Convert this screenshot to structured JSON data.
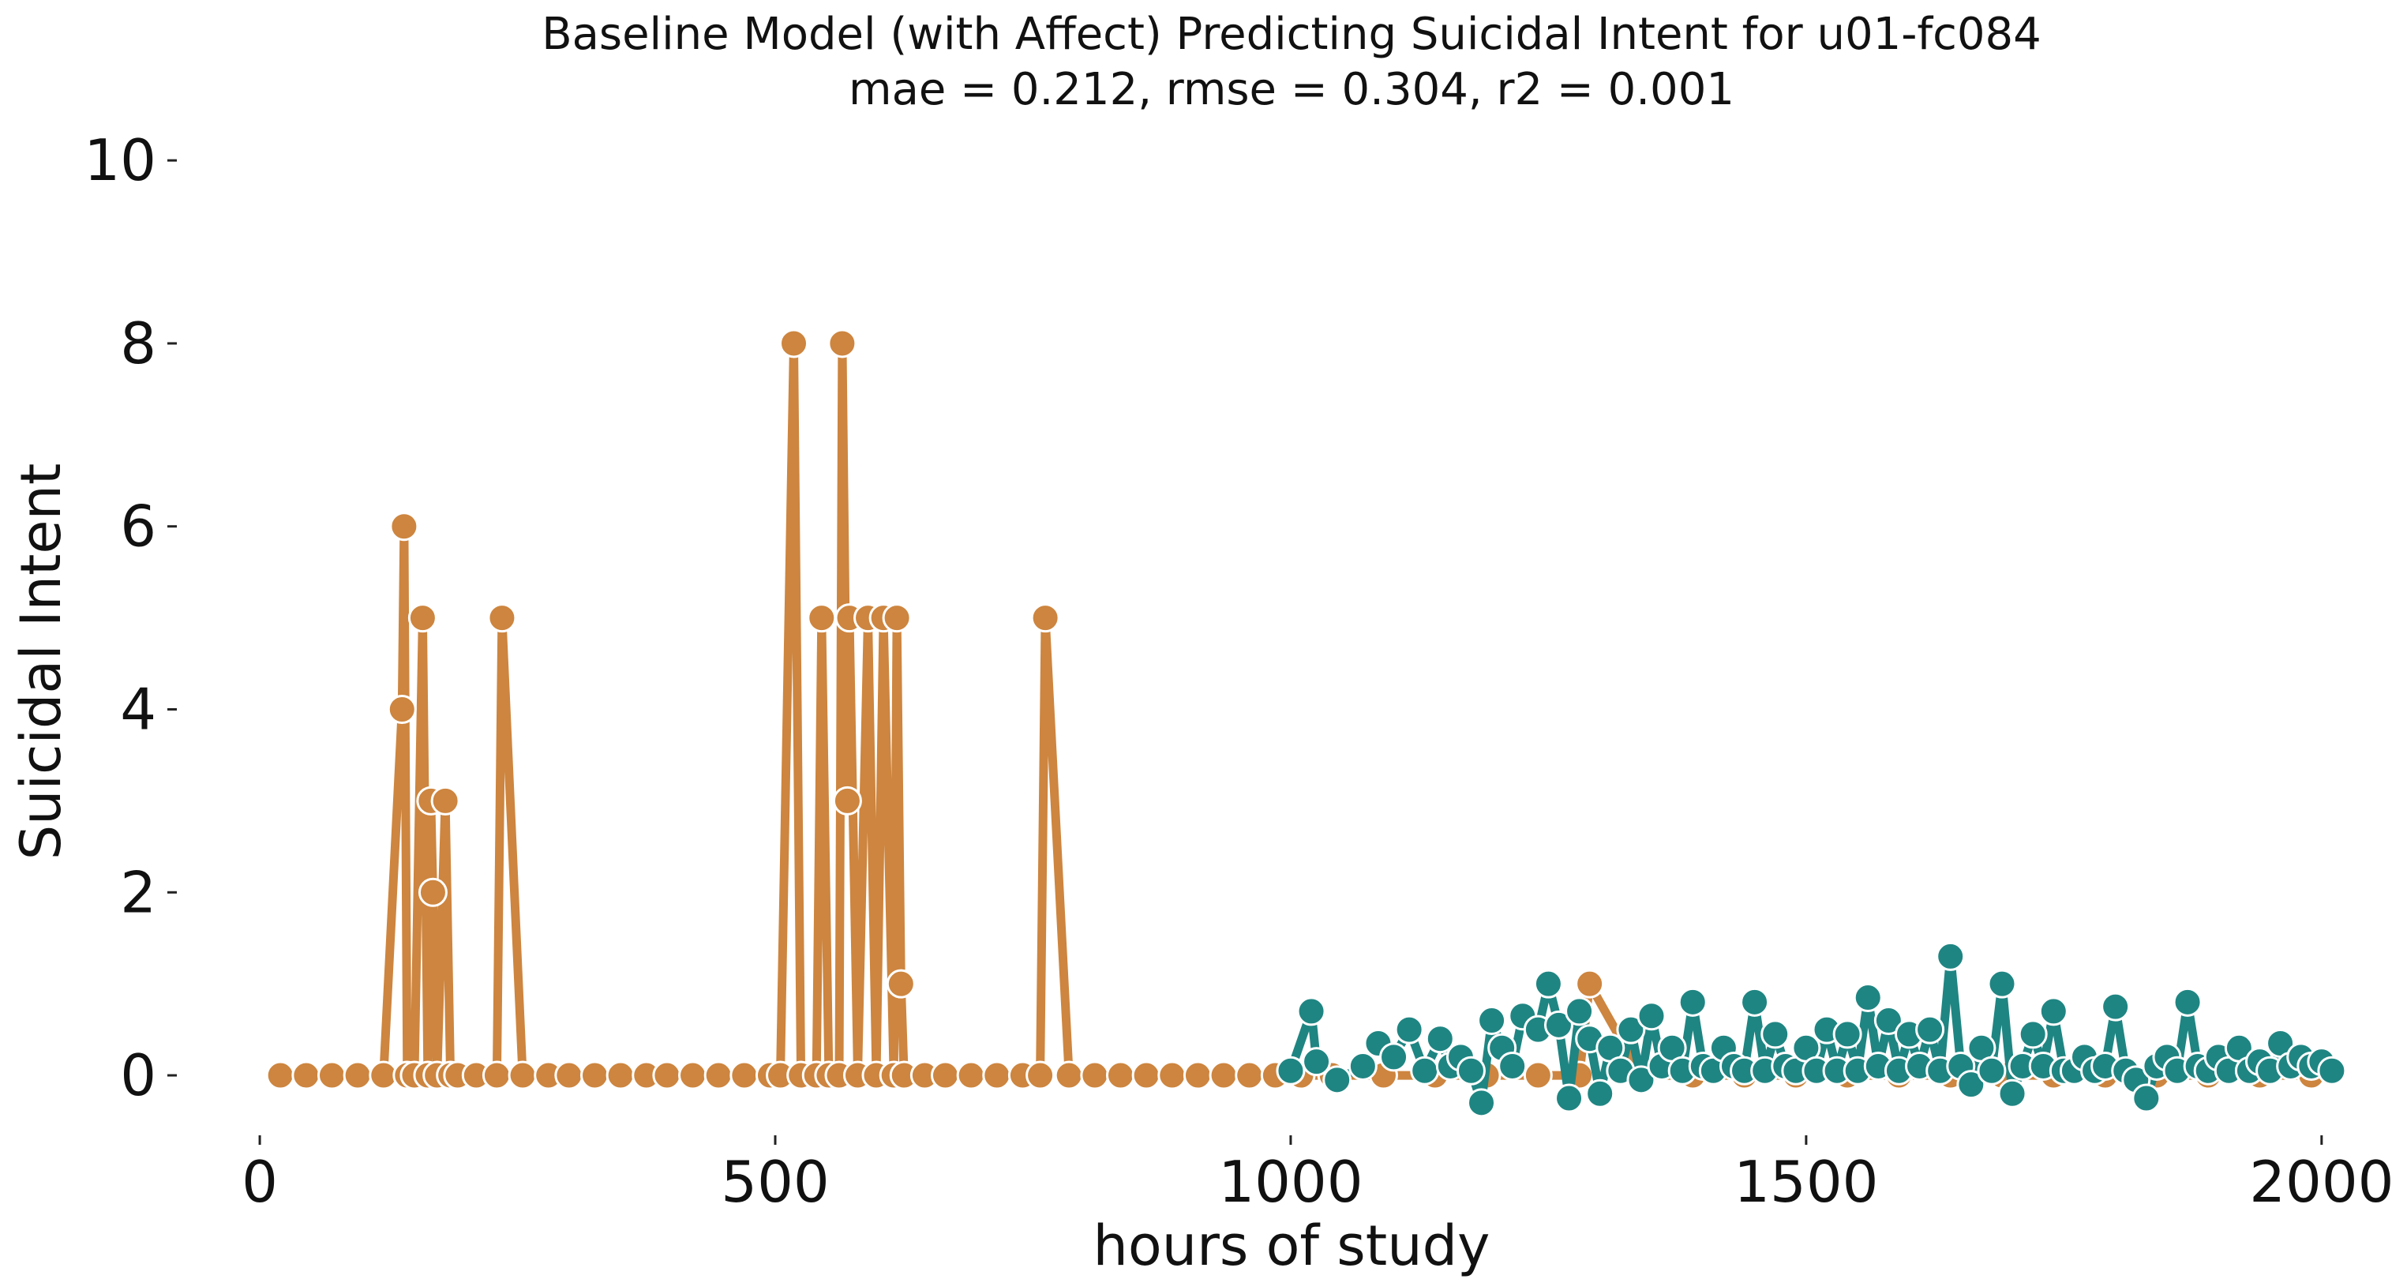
{
  "chart_data": {
    "type": "line",
    "title": "Baseline Model (with Affect) Predicting Suicidal Intent for u01-fc084",
    "subtitle": "mae = 0.212, rmse = 0.304, r2 = 0.001",
    "xlabel": "hours of study",
    "ylabel": "Suicidal Intent",
    "xlim": [
      -10,
      2030
    ],
    "ylim": [
      -0.5,
      10.2
    ],
    "xticks": [
      0,
      500,
      1000,
      1500,
      2000
    ],
    "yticks": [
      0,
      2,
      4,
      6,
      8,
      10
    ],
    "grid": false,
    "legend": "none",
    "colors": {
      "observed": "#cd853f",
      "predicted": "#1f8582"
    },
    "series": [
      {
        "role": "observed",
        "x": [
          20,
          45,
          70,
          95,
          120,
          138,
          140,
          143,
          150,
          158,
          163,
          166,
          168,
          172,
          180,
          185,
          192,
          210,
          230,
          235,
          255,
          280,
          300,
          325,
          350,
          375,
          395,
          420,
          445,
          470,
          495,
          505,
          518,
          525,
          540,
          545,
          552,
          562,
          565,
          570,
          572,
          580,
          590,
          598,
          605,
          615,
          618,
          622,
          625,
          645,
          665,
          690,
          715,
          740,
          757,
          762,
          785,
          810,
          835,
          860,
          885,
          910,
          935,
          960,
          985,
          1010,
          1040,
          1090,
          1140,
          1190,
          1240,
          1280,
          1290,
          1340,
          1390,
          1440,
          1490,
          1540,
          1590,
          1640,
          1690,
          1740,
          1790,
          1840,
          1890,
          1940,
          1990
        ],
        "y": [
          0,
          0,
          0,
          0,
          0,
          4,
          6,
          0,
          0,
          5,
          0,
          3,
          2,
          0,
          3,
          0,
          0,
          0,
          0,
          5,
          0,
          0,
          0,
          0,
          0,
          0,
          0,
          0,
          0,
          0,
          0,
          0,
          8,
          0,
          0,
          5,
          0,
          0,
          8,
          3,
          5,
          0,
          5,
          0,
          5,
          0,
          5,
          1,
          0,
          0,
          0,
          0,
          0,
          0,
          0,
          5,
          0,
          0,
          0,
          0,
          0,
          0,
          0,
          0,
          0,
          0,
          0,
          0,
          0,
          0,
          0,
          0,
          1,
          0,
          0,
          0,
          0,
          0,
          0,
          0,
          0,
          0,
          0,
          0,
          0,
          0,
          0
        ]
      },
      {
        "role": "predicted",
        "x": [
          1000,
          1020,
          1025,
          1045,
          1070,
          1085,
          1100,
          1115,
          1130,
          1145,
          1155,
          1165,
          1175,
          1185,
          1195,
          1205,
          1215,
          1225,
          1240,
          1250,
          1260,
          1270,
          1280,
          1290,
          1300,
          1310,
          1320,
          1330,
          1340,
          1350,
          1360,
          1370,
          1380,
          1390,
          1400,
          1410,
          1420,
          1430,
          1440,
          1450,
          1460,
          1470,
          1480,
          1490,
          1500,
          1510,
          1520,
          1530,
          1540,
          1550,
          1560,
          1570,
          1580,
          1590,
          1600,
          1610,
          1620,
          1630,
          1640,
          1650,
          1660,
          1670,
          1680,
          1690,
          1700,
          1710,
          1720,
          1730,
          1740,
          1750,
          1760,
          1770,
          1780,
          1790,
          1800,
          1810,
          1820,
          1830,
          1840,
          1850,
          1860,
          1870,
          1880,
          1890,
          1900,
          1910,
          1920,
          1930,
          1940,
          1950,
          1960,
          1970,
          1980,
          1990,
          2000,
          2010
        ],
        "y": [
          0.05,
          0.7,
          0.15,
          -0.05,
          0.1,
          0.35,
          0.2,
          0.5,
          0.05,
          0.4,
          0.1,
          0.2,
          0.05,
          -0.3,
          0.6,
          0.3,
          0.1,
          0.65,
          0.5,
          1.0,
          0.55,
          -0.25,
          0.7,
          0.4,
          -0.2,
          0.3,
          0.05,
          0.5,
          -0.05,
          0.65,
          0.1,
          0.3,
          0.05,
          0.8,
          0.1,
          0.05,
          0.3,
          0.1,
          0.05,
          0.8,
          0.05,
          0.45,
          0.1,
          0.05,
          0.3,
          0.05,
          0.5,
          0.05,
          0.45,
          0.05,
          0.85,
          0.1,
          0.6,
          0.05,
          0.45,
          0.1,
          0.5,
          0.05,
          1.3,
          0.1,
          -0.1,
          0.3,
          0.05,
          1.0,
          -0.2,
          0.1,
          0.45,
          0.1,
          0.7,
          0.05,
          0.05,
          0.2,
          0.05,
          0.1,
          0.75,
          0.05,
          -0.05,
          -0.25,
          0.1,
          0.2,
          0.05,
          0.8,
          0.1,
          0.05,
          0.2,
          0.05,
          0.3,
          0.05,
          0.15,
          0.05,
          0.35,
          0.1,
          0.2,
          0.1,
          0.15,
          0.05
        ]
      }
    ]
  }
}
